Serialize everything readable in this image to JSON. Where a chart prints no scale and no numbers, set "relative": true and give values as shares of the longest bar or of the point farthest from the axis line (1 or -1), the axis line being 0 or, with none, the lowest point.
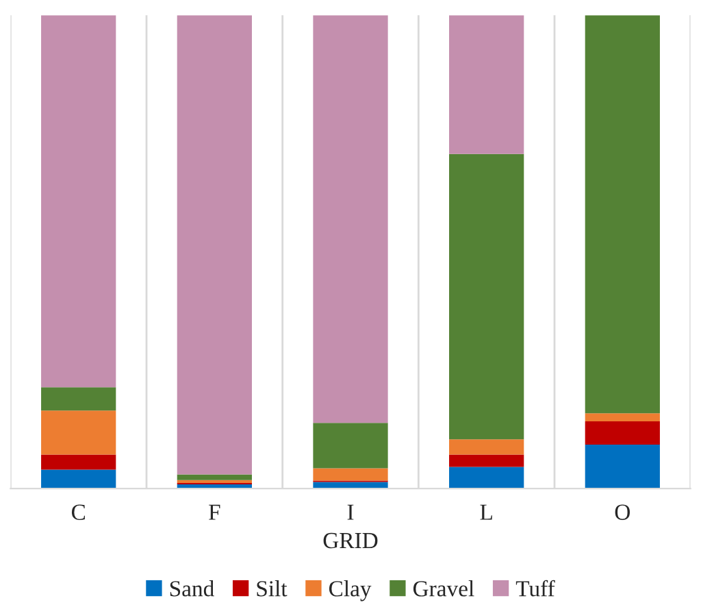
{
  "chart_data": {
    "type": "bar",
    "stacked": true,
    "relative": true,
    "xlabel": "GRID",
    "categories": [
      "C",
      "F",
      "I",
      "L",
      "O"
    ],
    "series": [
      {
        "name": "Sand",
        "color": "#0070c0",
        "values": [
          0.04,
          0.009,
          0.014,
          0.046,
          0.093
        ]
      },
      {
        "name": "Silt",
        "color": "#c00000",
        "values": [
          0.032,
          0.003,
          0.003,
          0.026,
          0.049
        ]
      },
      {
        "name": "Clay",
        "color": "#ed7d31",
        "values": [
          0.093,
          0.006,
          0.026,
          0.032,
          0.017
        ]
      },
      {
        "name": "Gravel",
        "color": "#548235",
        "values": [
          0.049,
          0.012,
          0.096,
          0.603,
          0.841
        ]
      },
      {
        "name": "Tuff",
        "color": "#c48fae",
        "values": [
          0.786,
          0.97,
          0.861,
          0.293,
          0.0
        ]
      }
    ],
    "grid": "x",
    "legend": "bottom"
  }
}
